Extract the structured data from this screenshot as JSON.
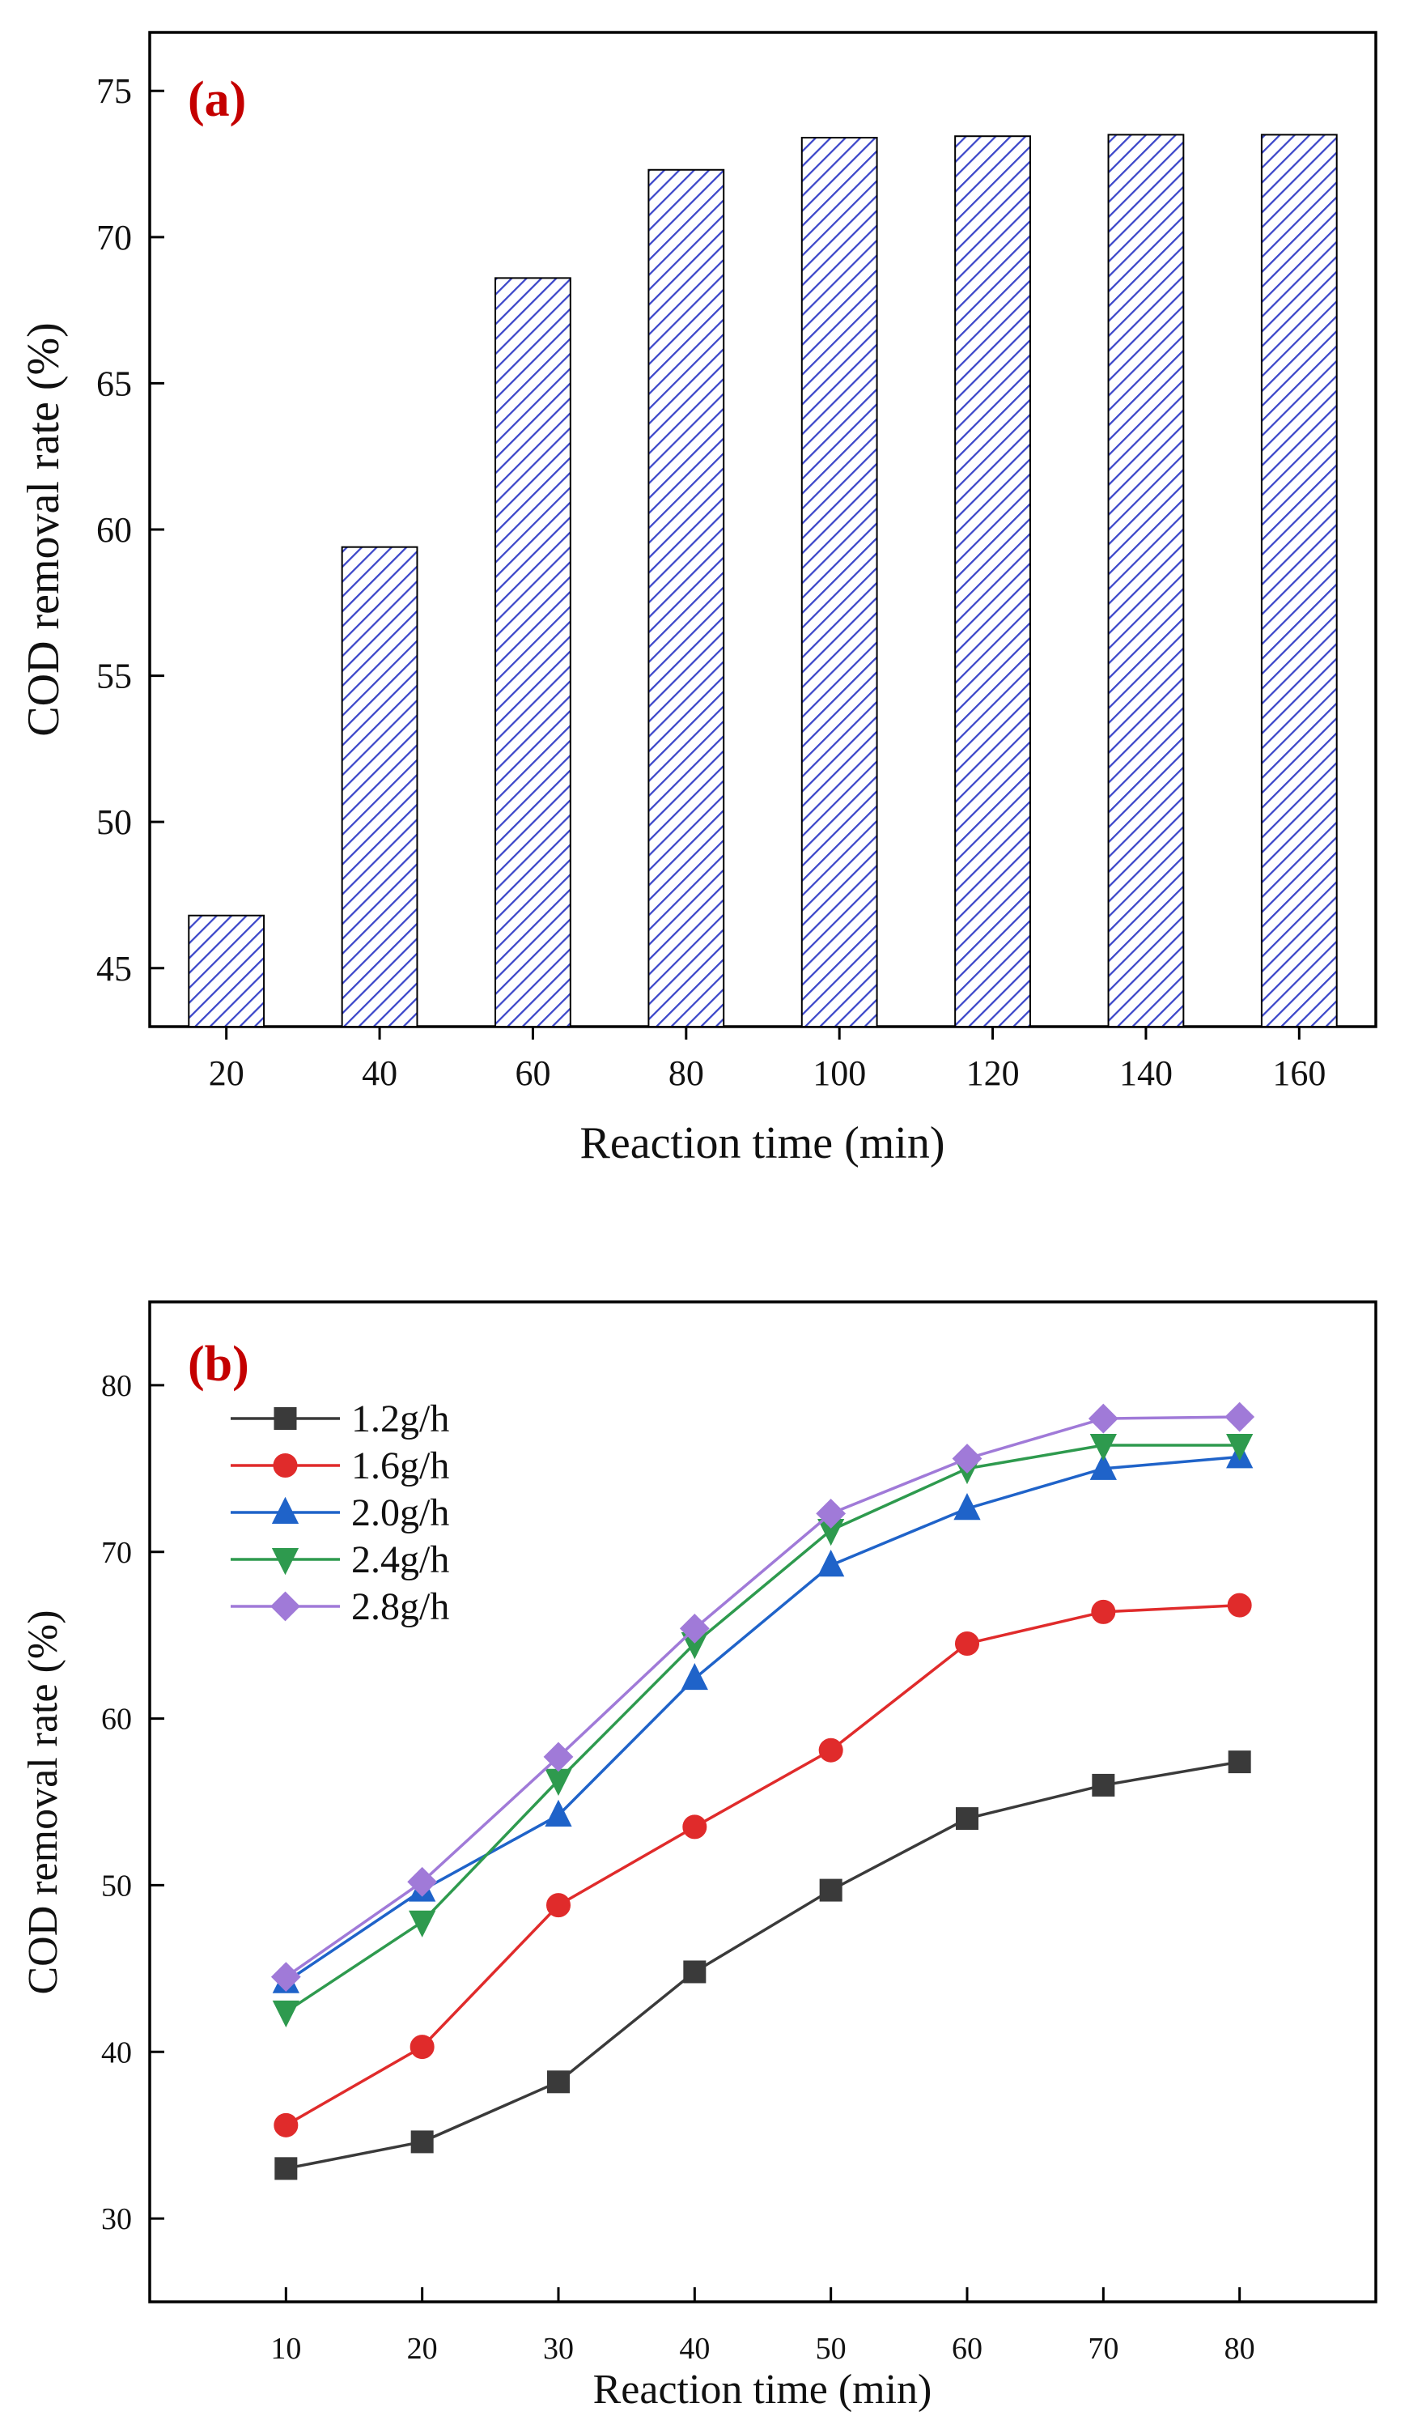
{
  "chart_data": [
    {
      "panel_label": "(a)",
      "type": "bar",
      "title": "",
      "xlabel": "Reaction time (min)",
      "ylabel": "COD removal rate (%)",
      "categories": [
        "20",
        "40",
        "60",
        "80",
        "100",
        "120",
        "140",
        "160"
      ],
      "values": [
        46.8,
        59.4,
        68.6,
        72.3,
        73.4,
        73.45,
        73.5,
        73.5
      ],
      "ylim": [
        43,
        77
      ],
      "yticks": [
        45,
        50,
        55,
        60,
        65,
        70,
        75
      ],
      "bar_color": "#3b46c9",
      "hatch": "diagonal",
      "grid": false
    },
    {
      "panel_label": "(b)",
      "type": "line",
      "title": "",
      "xlabel": "Reaction time (min)",
      "ylabel": "COD removal rate (%)",
      "x": [
        10,
        20,
        30,
        40,
        50,
        60,
        70,
        80
      ],
      "xlim": [
        0,
        90
      ],
      "xticks": [
        10,
        20,
        30,
        40,
        50,
        60,
        70,
        80
      ],
      "ylim": [
        25,
        85
      ],
      "yticks": [
        30,
        40,
        50,
        60,
        70,
        80
      ],
      "legend_position": "top-left",
      "grid": false,
      "series": [
        {
          "name": "1.2g/h",
          "color": "#3a3a3a",
          "marker": "square",
          "values": [
            33.0,
            34.6,
            38.2,
            44.8,
            49.7,
            54.0,
            56.0,
            57.4
          ]
        },
        {
          "name": "1.6g/h",
          "color": "#e02b2b",
          "marker": "circle",
          "values": [
            35.6,
            40.3,
            48.8,
            53.5,
            58.1,
            64.5,
            66.4,
            66.8
          ]
        },
        {
          "name": "2.0g/h",
          "color": "#1f63c9",
          "marker": "triangle-up",
          "values": [
            44.2,
            49.7,
            54.2,
            62.4,
            69.2,
            72.6,
            75.0,
            75.7
          ]
        },
        {
          "name": "2.4g/h",
          "color": "#2e9a4e",
          "marker": "triangle-down",
          "values": [
            42.4,
            47.8,
            56.3,
            64.5,
            71.3,
            75.0,
            76.4,
            76.4
          ]
        },
        {
          "name": "2.8g/h",
          "color": "#a07ad8",
          "marker": "diamond",
          "values": [
            44.5,
            50.2,
            57.7,
            65.4,
            72.3,
            75.6,
            78.0,
            78.1
          ]
        }
      ]
    }
  ]
}
